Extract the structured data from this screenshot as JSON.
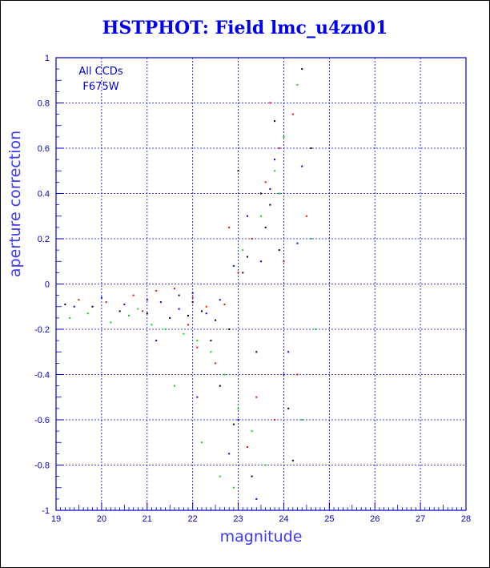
{
  "chart_data": {
    "type": "scatter",
    "title": "HSTPHOT: Field lmc_u4zn01",
    "xlabel": "magnitude",
    "ylabel": "aperture correction",
    "xlim": [
      19,
      28
    ],
    "ylim": [
      -1,
      1
    ],
    "xticks": [
      "19",
      "20",
      "21",
      "22",
      "23",
      "24",
      "25",
      "26",
      "27",
      "28"
    ],
    "yticks": [
      "1",
      "0.8",
      "0.6",
      "0.4",
      "0.2",
      "0",
      "-0.2",
      "-0.4",
      "-0.6",
      "-0.8",
      "-1"
    ],
    "grid": true,
    "annotation_lines": [
      "All CCDs",
      "F675W"
    ],
    "colors": {
      "axis": "#0000cc",
      "grid": "#0000cc",
      "black": "#000000",
      "red": "#ff0000",
      "green": "#00dd00",
      "blue": "#0000ff"
    },
    "series": [
      {
        "color_key": "black",
        "x": [
          19.2,
          19.8,
          20.4,
          21.0,
          21.5,
          21.9,
          22.2,
          22.5,
          22.8,
          23.0,
          23.2,
          23.4,
          23.6,
          23.8,
          24.1,
          24.4,
          22.9,
          23.3,
          23.7,
          24.6,
          22.6,
          23.1,
          21.7,
          22.4,
          23.5,
          24.2,
          22.0,
          23.9
        ],
        "y": [
          -0.09,
          -0.1,
          -0.12,
          -0.13,
          -0.15,
          -0.14,
          -0.12,
          -0.16,
          -0.2,
          0.5,
          0.12,
          -0.3,
          0.25,
          0.72,
          -0.55,
          0.95,
          -0.62,
          -0.85,
          0.35,
          0.6,
          -0.45,
          0.05,
          -0.05,
          -0.25,
          0.4,
          -0.78,
          -0.08,
          0.15
        ]
      },
      {
        "color_key": "red",
        "x": [
          19.5,
          20.1,
          20.7,
          21.2,
          21.6,
          22.0,
          22.3,
          22.7,
          23.0,
          23.3,
          23.6,
          23.9,
          24.2,
          24.5,
          22.5,
          23.4,
          23.8,
          24.0,
          21.9,
          22.8,
          23.2,
          24.3,
          20.9,
          22.1,
          23.7
        ],
        "y": [
          -0.07,
          -0.08,
          -0.05,
          -0.03,
          -0.02,
          -0.06,
          -0.1,
          -0.09,
          0.05,
          0.2,
          0.45,
          0.6,
          0.75,
          0.3,
          -0.35,
          -0.5,
          -0.6,
          0.1,
          -0.18,
          0.25,
          -0.72,
          -0.4,
          -0.12,
          -0.28,
          0.8
        ]
      },
      {
        "color_key": "green",
        "x": [
          19.3,
          19.7,
          20.2,
          20.6,
          21.1,
          21.4,
          21.8,
          22.1,
          22.4,
          22.7,
          23.0,
          23.3,
          23.5,
          23.8,
          24.0,
          24.3,
          24.6,
          22.2,
          22.9,
          23.6,
          24.4,
          21.6,
          23.1,
          23.9,
          24.7,
          20.8,
          22.6
        ],
        "y": [
          -0.15,
          -0.13,
          -0.17,
          -0.14,
          -0.18,
          -0.2,
          -0.22,
          -0.25,
          -0.3,
          -0.4,
          -0.55,
          -0.65,
          0.3,
          0.5,
          0.65,
          0.88,
          0.2,
          -0.7,
          -0.9,
          -0.8,
          -0.6,
          -0.45,
          0.15,
          0.4,
          -0.2,
          -0.11,
          -0.85
        ]
      },
      {
        "color_key": "blue",
        "x": [
          19.4,
          20.0,
          20.5,
          21.0,
          21.3,
          21.7,
          22.0,
          22.3,
          22.6,
          22.9,
          23.2,
          23.5,
          23.8,
          24.1,
          24.4,
          22.1,
          22.8,
          23.4,
          24.0,
          24.3,
          21.2,
          23.0,
          23.7
        ],
        "y": [
          -0.1,
          -0.06,
          -0.09,
          -0.07,
          -0.08,
          -0.11,
          -0.04,
          -0.13,
          -0.07,
          0.08,
          0.3,
          0.1,
          0.55,
          -0.3,
          0.52,
          -0.5,
          -0.75,
          -0.95,
          -0.4,
          0.18,
          -0.25,
          -0.6,
          0.42
        ]
      }
    ]
  }
}
